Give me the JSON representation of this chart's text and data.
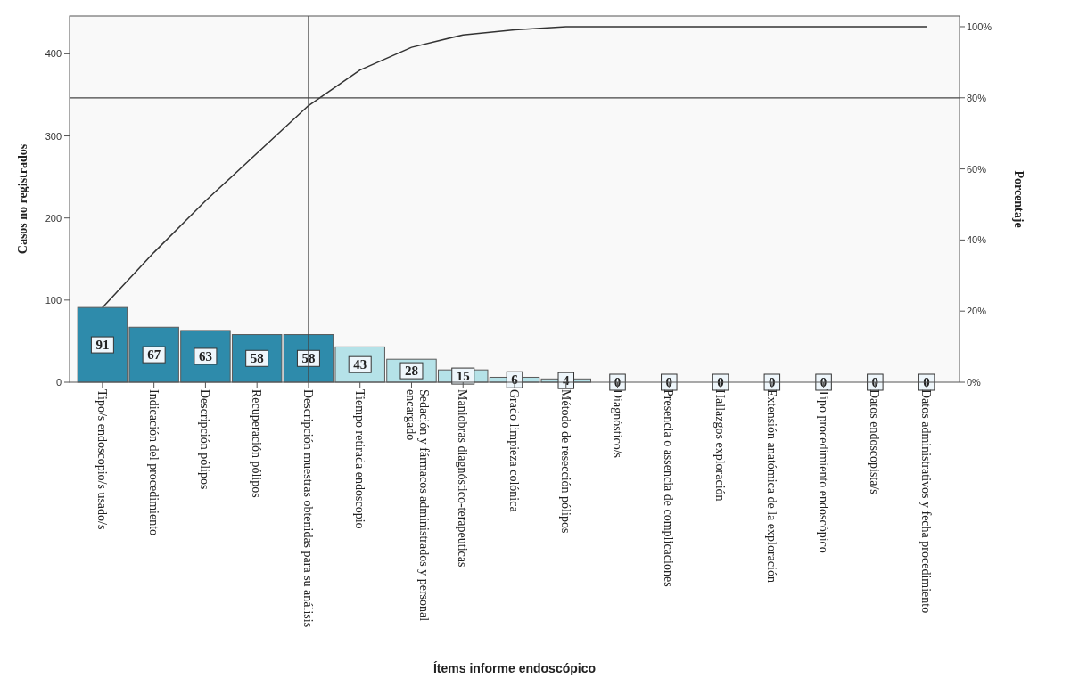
{
  "chart_data": {
    "type": "bar",
    "xlabel": "Ítems informe endoscópico",
    "ylabel": "Casos no registrados",
    "y2label": "Porcentaje",
    "categories": [
      "Tipo/s endoscopio/s usado/s",
      "Indicación del procedimiento",
      "Descripción pólipos",
      "Recuperación pólipos",
      "Descripción muestras obtenidas para su análisis",
      "Tiempo retirada endoscopio",
      "Sedación y fármacos administrados y personal encargado",
      "Maniobras diagnóstico-terapeuticas",
      "Grado limpieza colónica",
      "Método de resección pólipos",
      "Diagnóstico/s",
      "Presencia o assencia de complicaciones",
      "Hallazgos exploración",
      "Extensión anatómica de la exploración",
      "Tipo procedimiento endoscópico",
      "Datos endoscopista/s",
      "Datos administrativos y fecha procedimiento"
    ],
    "series": [
      {
        "values": [
          91,
          67,
          63,
          58,
          58,
          43,
          28,
          15,
          6,
          4,
          0,
          0,
          0,
          0,
          0,
          0,
          0
        ],
        "value_labels": [
          "91",
          "67",
          "63",
          "58",
          "58",
          "43",
          "28",
          "15",
          "6",
          "4",
          "0",
          "0",
          "0",
          "0",
          "0",
          "0",
          "0"
        ],
        "colors": [
          "#2e8bab",
          "#2e8bab",
          "#2e8bab",
          "#2e8bab",
          "#2e8bab",
          "#b5e2e8",
          "#b5e2e8",
          "#b5e2e8",
          "#b5e2e8",
          "#b5e2e8",
          "#b5e2e8",
          "#b5e2e8",
          "#b5e2e8",
          "#b5e2e8",
          "#b5e2e8",
          "#b5e2e8",
          "#b5e2e8"
        ]
      },
      {
        "type": "line",
        "axis": "y2",
        "color": "#333333",
        "values": [
          21.0,
          36.5,
          51.0,
          64.4,
          77.8,
          87.8,
          94.2,
          97.7,
          99.1,
          100,
          100,
          100,
          100,
          100,
          100,
          100,
          100
        ]
      }
    ],
    "ylim": [
      0,
      446
    ],
    "yticks": [
      0,
      100,
      200,
      300,
      400
    ],
    "y2lim": [
      0,
      103
    ],
    "y2ticks": [
      {
        "value": 0,
        "label": "0%"
      },
      {
        "value": 20,
        "label": "20%"
      },
      {
        "value": 40,
        "label": "40%"
      },
      {
        "value": 60,
        "label": "60%"
      },
      {
        "value": 80,
        "label": "80%"
      },
      {
        "value": 100,
        "label": "100%"
      }
    ],
    "ref_lines": [
      {
        "axis": "y2",
        "value": 80,
        "color": "#444444"
      },
      {
        "axis": "x",
        "value": "Descripción muestras obtenidas para su análisis",
        "color": "#444444"
      }
    ]
  }
}
